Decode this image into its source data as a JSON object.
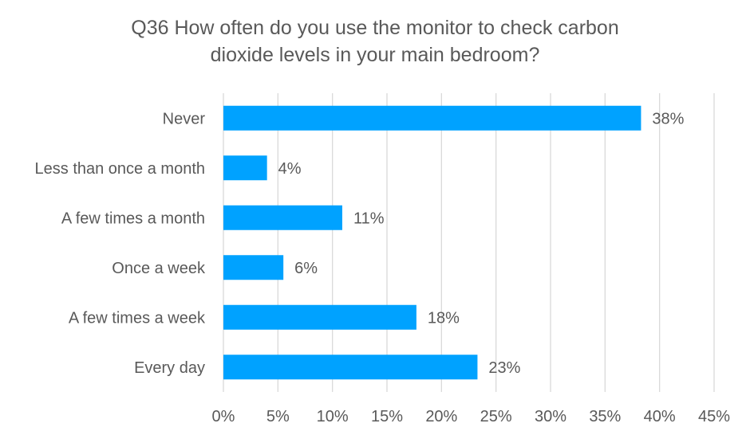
{
  "chart_data": {
    "type": "bar",
    "orientation": "horizontal",
    "title_lines": [
      "Q36 How often do you use the monitor to check carbon",
      "dioxide levels in your main bedroom?"
    ],
    "categories": [
      "Never",
      "Less than once a month",
      "A few times a month",
      "Once a week",
      "A few times a week",
      "Every day"
    ],
    "values": [
      38.3,
      4.0,
      10.9,
      5.5,
      17.7,
      23.3
    ],
    "data_labels": [
      "38%",
      "4%",
      "11%",
      "6%",
      "18%",
      "23%"
    ],
    "xlim": [
      0,
      45
    ],
    "xticks": [
      0,
      5,
      10,
      15,
      20,
      25,
      30,
      35,
      40,
      45
    ],
    "xtick_labels": [
      "0%",
      "5%",
      "10%",
      "15%",
      "20%",
      "25%",
      "30%",
      "35%",
      "40%",
      "45%"
    ],
    "xlabel": "",
    "ylabel": "",
    "grid": "vertical",
    "legend": "none",
    "bar_color": "#00A2FF",
    "grid_color": "#D9D9D9",
    "text_color": "#595959"
  }
}
